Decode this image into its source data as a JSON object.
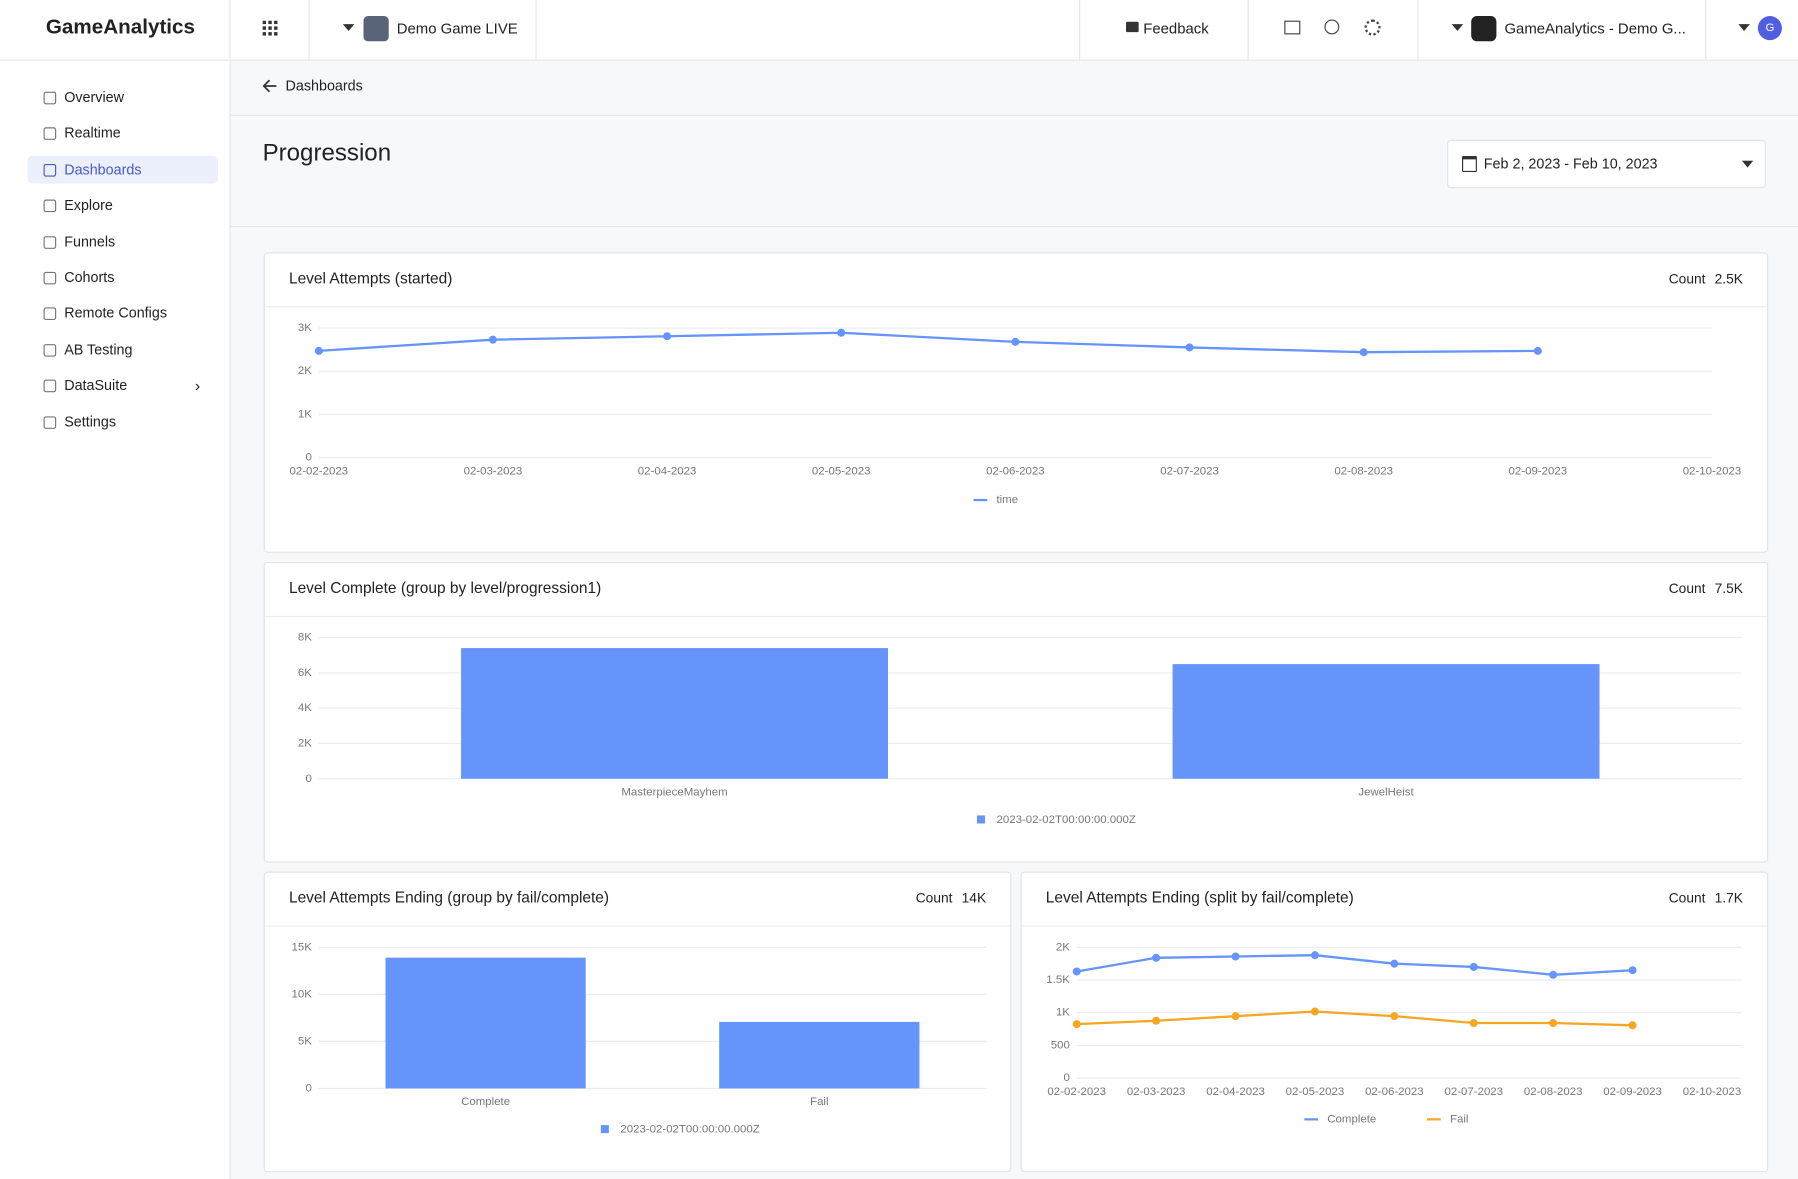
{
  "topbar": {
    "logo": "GameAnalytics",
    "game": "Demo Game LIVE",
    "feedback": "Feedback",
    "org": "GameAnalytics - Demo G...",
    "avatar": "G"
  },
  "sidebar": {
    "items": [
      "Overview",
      "Realtime",
      "Dashboards",
      "Explore",
      "Funnels",
      "Cohorts",
      "Remote Configs",
      "AB Testing",
      "DataSuite",
      "Settings"
    ]
  },
  "breadcrumb": "Dashboards",
  "page_title": "Progression",
  "date_range": "Feb 2, 2023 - Feb 10, 2023",
  "chart_data": [
    {
      "type": "line",
      "title": "Level Attempts (started)",
      "count_label": "Count",
      "count": "2.5K",
      "categories": [
        "02-02-2023",
        "02-03-2023",
        "02-04-2023",
        "02-05-2023",
        "02-06-2023",
        "02-07-2023",
        "02-08-2023",
        "02-09-2023",
        "02-10-2023"
      ],
      "series": [
        {
          "name": "time",
          "color": "#6594fb",
          "values": [
            2470,
            2730,
            2810,
            2890,
            2680,
            2550,
            2440,
            2470,
            null
          ]
        }
      ],
      "ylim": [
        0,
        3000
      ],
      "yticks": [
        0,
        {
          "value": 1000,
          "label": "1K"
        },
        {
          "value": 2000,
          "label": "2K"
        },
        {
          "value": 3000,
          "label": "3K"
        }
      ],
      "grid": true
    },
    {
      "type": "bar",
      "title": "Level Complete (group by level/progression1)",
      "count_label": "Count",
      "count": "7.5K",
      "categories": [
        "MasterpieceMayhem",
        "JewelHeist"
      ],
      "series": [
        {
          "name": "2023-02-02T00:00:00.000Z",
          "color": "#6594fb",
          "values": [
            7410,
            6500
          ]
        }
      ],
      "ylim": [
        0,
        8000
      ],
      "yticks": [
        0,
        {
          "value": 2000,
          "label": "2K"
        },
        {
          "value": 4000,
          "label": "4K"
        },
        {
          "value": 6000,
          "label": "6K"
        },
        {
          "value": 8000,
          "label": "8K"
        }
      ],
      "grid": true
    },
    {
      "type": "bar",
      "title": "Level Attempts Ending (group by fail/complete)",
      "count_label": "Count",
      "count": "14K",
      "categories": [
        "Complete",
        "Fail"
      ],
      "series": [
        {
          "name": "2023-02-02T00:00:00.000Z",
          "color": "#6594fb",
          "values": [
            13900,
            7070
          ]
        }
      ],
      "ylim": [
        0,
        15000
      ],
      "yticks": [
        0,
        {
          "value": 5000,
          "label": "5K"
        },
        {
          "value": 10000,
          "label": "10K"
        },
        {
          "value": 15000,
          "label": "15K"
        }
      ],
      "grid": true
    },
    {
      "type": "line",
      "title": "Level Attempts Ending (split by fail/complete)",
      "count_label": "Count",
      "count": "1.7K",
      "categories": [
        "02-02-2023",
        "02-03-2023",
        "02-04-2023",
        "02-05-2023",
        "02-06-2023",
        "02-07-2023",
        "02-08-2023",
        "02-09-2023",
        "02-10-2023"
      ],
      "series": [
        {
          "name": "Complete",
          "color": "#6594fb",
          "values": [
            1630,
            1840,
            1860,
            1880,
            1750,
            1700,
            1580,
            1650,
            null
          ]
        },
        {
          "name": "Fail",
          "color": "#f5a623",
          "values": [
            825,
            877,
            947,
            1018,
            947,
            842,
            842,
            807,
            null
          ]
        }
      ],
      "ylim": [
        0,
        2000
      ],
      "yticks": [
        0,
        500,
        {
          "value": 1000,
          "label": "1K"
        },
        {
          "value": 1500,
          "label": "1.5K"
        },
        {
          "value": 2000,
          "label": "2K"
        }
      ],
      "grid": true
    }
  ]
}
